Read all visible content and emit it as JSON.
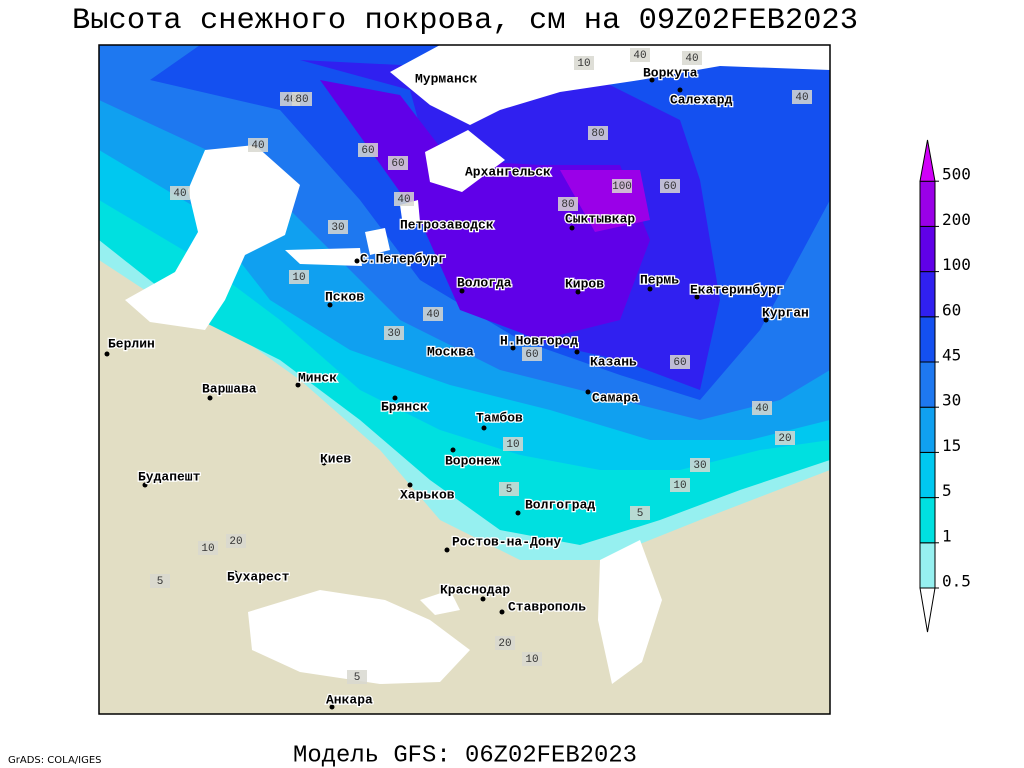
{
  "title": "Высота снежного покрова, см на 09Z02FEB2023",
  "footer_left": "GrADS: COLA/IGES",
  "footer_model": "Модель GFS: 06Z02FEB2023",
  "legend": {
    "levels": [
      0.5,
      1,
      5,
      15,
      30,
      45,
      60,
      100,
      200,
      500
    ],
    "colors": [
      "#ffffff",
      "#96f0f0",
      "#00e0e0",
      "#00c8f0",
      "#10a0f0",
      "#1e78f0",
      "#1450f0",
      "#3020f0",
      "#6000e8",
      "#9a00e8",
      "#d000f8"
    ]
  },
  "cities": [
    "Мурманск",
    "Воркута",
    "Салехард",
    "Архангельск",
    "Петрозаводск",
    "Сыктывкар",
    "С.Петербург",
    "Вологда",
    "Киров",
    "Пермь",
    "Екатеринбург",
    "Курган",
    "Псков",
    "Н.Новгород",
    "Москва",
    "Казань",
    "Берлин",
    "Минск",
    "Варшава",
    "Брянск",
    "Самара",
    "Тамбов",
    "Киев",
    "Воронеж",
    "Будапешт",
    "Харьков",
    "Волгоград",
    "Ростов-на-Дону",
    "Бухарест",
    "Краснодар",
    "Ставрополь",
    "Анкара"
  ],
  "contour_labels": [
    10,
    40,
    40,
    40,
    40,
    80,
    40,
    40,
    60,
    60,
    40,
    80,
    100,
    60,
    80,
    30,
    10,
    30,
    40,
    60,
    60,
    40,
    20,
    30,
    10,
    10,
    5,
    20,
    10,
    5,
    10,
    20,
    5,
    5
  ]
}
